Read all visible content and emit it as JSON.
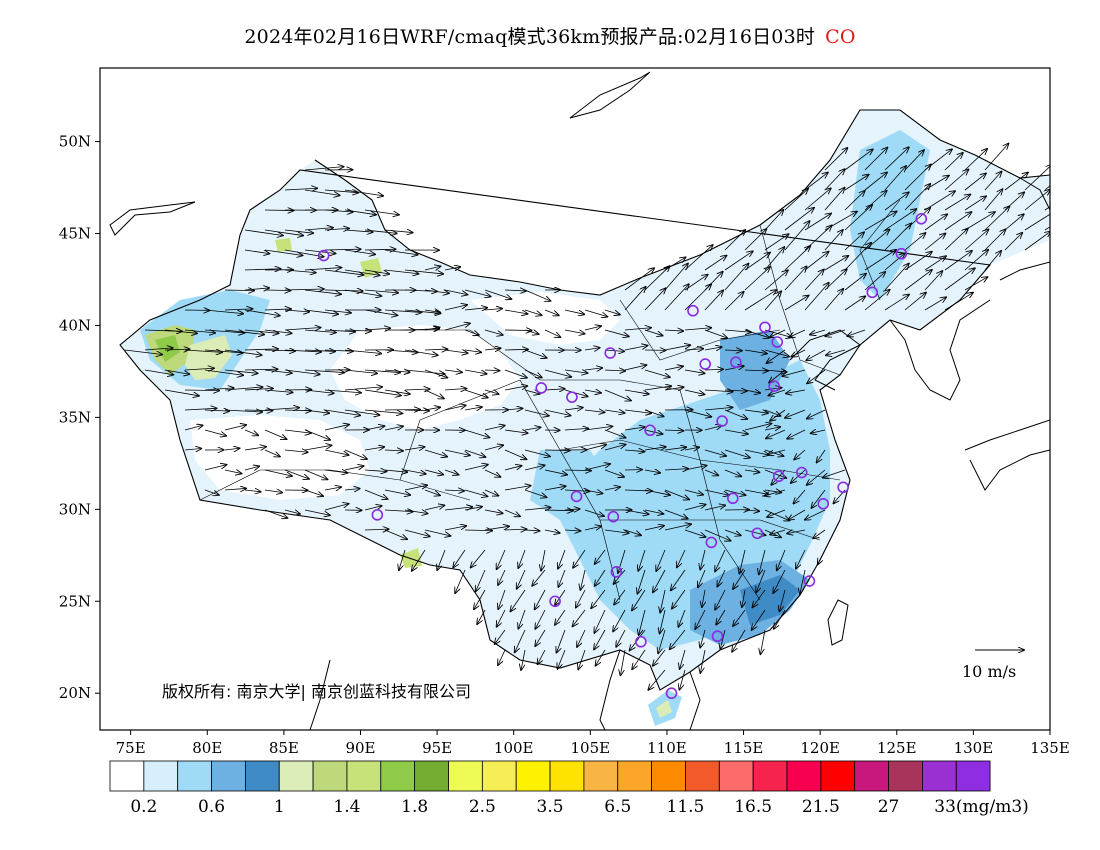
{
  "title": {
    "text": "2024年02月16日WRF/cmaq模式36km预报产品:02月16日03时",
    "pollutant": "CO",
    "pollutant_color": "#e01818"
  },
  "map": {
    "lon_range": [
      73,
      135
    ],
    "lat_range": [
      18,
      54
    ],
    "lat_labels": [
      "50N",
      "45N",
      "40N",
      "35N",
      "30N",
      "25N",
      "20N"
    ],
    "lat_values": [
      50,
      45,
      40,
      35,
      30,
      25,
      20
    ],
    "lon_labels": [
      "75E",
      "80E",
      "85E",
      "90E",
      "95E",
      "100E",
      "105E",
      "110E",
      "115E",
      "120E",
      "125E",
      "130E",
      "135E"
    ],
    "lon_values": [
      75,
      80,
      85,
      90,
      95,
      100,
      105,
      110,
      115,
      120,
      125,
      130,
      135
    ],
    "copyright": "版权所有: 南京大学| 南京创蓝科技有限公司",
    "wind_reference": "10 m/s",
    "station_color": "#8a2be2",
    "stations": [
      [
        87.6,
        43.8
      ],
      [
        126.6,
        45.8
      ],
      [
        125.3,
        43.9
      ],
      [
        123.4,
        41.8
      ],
      [
        116.4,
        39.9
      ],
      [
        117.2,
        39.1
      ],
      [
        114.5,
        38.0
      ],
      [
        112.5,
        37.9
      ],
      [
        111.7,
        40.8
      ],
      [
        106.3,
        38.5
      ],
      [
        101.8,
        36.6
      ],
      [
        103.8,
        36.1
      ],
      [
        108.9,
        34.3
      ],
      [
        113.6,
        34.8
      ],
      [
        117.0,
        36.7
      ],
      [
        117.3,
        31.8
      ],
      [
        118.8,
        32.0
      ],
      [
        121.5,
        31.2
      ],
      [
        120.2,
        30.3
      ],
      [
        114.3,
        30.6
      ],
      [
        112.9,
        28.2
      ],
      [
        115.9,
        28.7
      ],
      [
        119.3,
        26.1
      ],
      [
        113.3,
        23.1
      ],
      [
        108.3,
        22.8
      ],
      [
        110.3,
        20.0
      ],
      [
        106.7,
        26.6
      ],
      [
        102.7,
        25.0
      ],
      [
        104.1,
        30.7
      ],
      [
        106.5,
        29.6
      ],
      [
        91.1,
        29.7
      ]
    ]
  },
  "colorbar": {
    "colors": [
      "#ffffff",
      "#d7effc",
      "#9fdaf6",
      "#6db1e2",
      "#3f8bc5",
      "#dcecb7",
      "#bdd97c",
      "#c6e279",
      "#8fcb49",
      "#74ad32",
      "#eefa56",
      "#f6ee56",
      "#fff200",
      "#ffe300",
      "#f8b544",
      "#fba52a",
      "#fd8a00",
      "#f25a2a",
      "#fe6b6b",
      "#f5234e",
      "#f70050",
      "#fd0000",
      "#c8187d",
      "#a8345c",
      "#9b30d2",
      "#8e2de2"
    ],
    "tick_labels": [
      "0.2",
      "0.6",
      "1",
      "1.4",
      "1.8",
      "2.5",
      "3.5",
      "6.5",
      "11.5",
      "16.5",
      "21.5",
      "27",
      "33(mg/m3)"
    ]
  }
}
